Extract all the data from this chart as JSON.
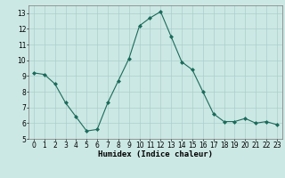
{
  "x": [
    0,
    1,
    2,
    3,
    4,
    5,
    6,
    7,
    8,
    9,
    10,
    11,
    12,
    13,
    14,
    15,
    16,
    17,
    18,
    19,
    20,
    21,
    22,
    23
  ],
  "y": [
    9.2,
    9.1,
    8.5,
    7.3,
    6.4,
    5.5,
    5.6,
    7.3,
    8.7,
    10.1,
    12.2,
    12.7,
    13.1,
    11.5,
    9.9,
    9.4,
    8.0,
    6.6,
    6.1,
    6.1,
    6.3,
    6.0,
    6.1,
    5.9
  ],
  "line_color": "#1a6b5a",
  "marker_color": "#1a6b5a",
  "bg_color": "#cce8e4",
  "grid_color": "#aacfcc",
  "xlabel": "Humidex (Indice chaleur)",
  "ylim": [
    5,
    13.5
  ],
  "xlim": [
    -0.5,
    23.5
  ],
  "yticks": [
    5,
    6,
    7,
    8,
    9,
    10,
    11,
    12,
    13
  ],
  "xticks": [
    0,
    1,
    2,
    3,
    4,
    5,
    6,
    7,
    8,
    9,
    10,
    11,
    12,
    13,
    14,
    15,
    16,
    17,
    18,
    19,
    20,
    21,
    22,
    23
  ],
  "label_fontsize": 6.5,
  "tick_fontsize": 5.5
}
